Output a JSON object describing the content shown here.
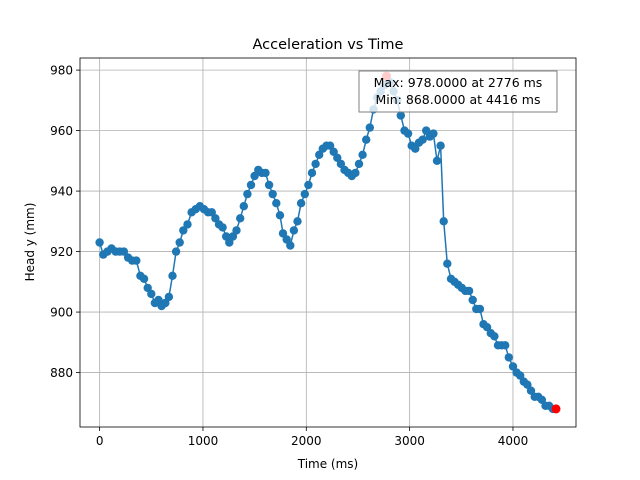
{
  "chart_data": {
    "type": "line",
    "title": "Acceleration vs Time",
    "xlabel": "Time (ms)",
    "ylabel": "Head y (mm)",
    "xlim": [
      -190,
      4610
    ],
    "ylim": [
      862,
      984
    ],
    "xticks": [
      0,
      1000,
      2000,
      3000,
      4000
    ],
    "yticks": [
      880,
      900,
      920,
      940,
      960,
      980
    ],
    "grid": true,
    "series": [
      {
        "color": "#1f77b4",
        "marker": "circle",
        "x": [
          0,
          35,
          75,
          115,
          155,
          195,
          235,
          275,
          315,
          355,
          395,
          430,
          465,
          500,
          535,
          570,
          600,
          635,
          670,
          705,
          740,
          775,
          810,
          850,
          890,
          930,
          970,
          1010,
          1050,
          1085,
          1120,
          1155,
          1190,
          1225,
          1255,
          1290,
          1325,
          1360,
          1395,
          1430,
          1465,
          1500,
          1535,
          1570,
          1605,
          1640,
          1675,
          1710,
          1745,
          1775,
          1810,
          1845,
          1880,
          1915,
          1950,
          1985,
          2020,
          2055,
          2090,
          2125,
          2160,
          2195,
          2230,
          2265,
          2300,
          2335,
          2370,
          2405,
          2440,
          2475,
          2510,
          2545,
          2580,
          2615,
          2650,
          2685,
          2720,
          2755,
          2776,
          2810,
          2845,
          2880,
          2915,
          2950,
          2985,
          3020,
          3055,
          3090,
          3125,
          3160,
          3195,
          3230,
          3265,
          3300,
          3330,
          3365,
          3400,
          3435,
          3470,
          3505,
          3540,
          3575,
          3610,
          3645,
          3680,
          3715,
          3750,
          3785,
          3820,
          3855,
          3890,
          3925,
          3960,
          4000,
          4035,
          4070,
          4105,
          4140,
          4175,
          4210,
          4245,
          4280,
          4315,
          4350,
          4385,
          4416
        ],
        "y": [
          923,
          919,
          920,
          921,
          920,
          920,
          920,
          918,
          917,
          917,
          912,
          911,
          908,
          906,
          903,
          904,
          902,
          903,
          905,
          912,
          920,
          923,
          927,
          929,
          933,
          934,
          935,
          934,
          933,
          933,
          931,
          929,
          928,
          925,
          923,
          925,
          927,
          931,
          935,
          939,
          942,
          945,
          947,
          946,
          946,
          942,
          939,
          936,
          932,
          926,
          924,
          922,
          927,
          930,
          936,
          939,
          942,
          946,
          949,
          952,
          954,
          955,
          955,
          953,
          951,
          949,
          947,
          946,
          945,
          946,
          949,
          952,
          957,
          961,
          967,
          971,
          973,
          975,
          978,
          976,
          973,
          970,
          965,
          960,
          959,
          955,
          954,
          956,
          957,
          960,
          958,
          959,
          950,
          955,
          930,
          916,
          911,
          910,
          909,
          908,
          907,
          907,
          904,
          901,
          901,
          896,
          895,
          893,
          892,
          889,
          889,
          889,
          885,
          882,
          880,
          879,
          877,
          876,
          874,
          872,
          872,
          871,
          869,
          869,
          868,
          868
        ]
      }
    ],
    "highlights": [
      {
        "label": "Max",
        "x": 2776,
        "y": 978,
        "color": "#ff0000"
      },
      {
        "label": "Min",
        "x": 4416,
        "y": 868,
        "color": "#ff0000"
      }
    ],
    "annotation": {
      "line1": "Max: 978.0000 at 2776 ms",
      "line2": "Min: 868.0000 at 4416 ms",
      "placement": "top-right"
    }
  }
}
